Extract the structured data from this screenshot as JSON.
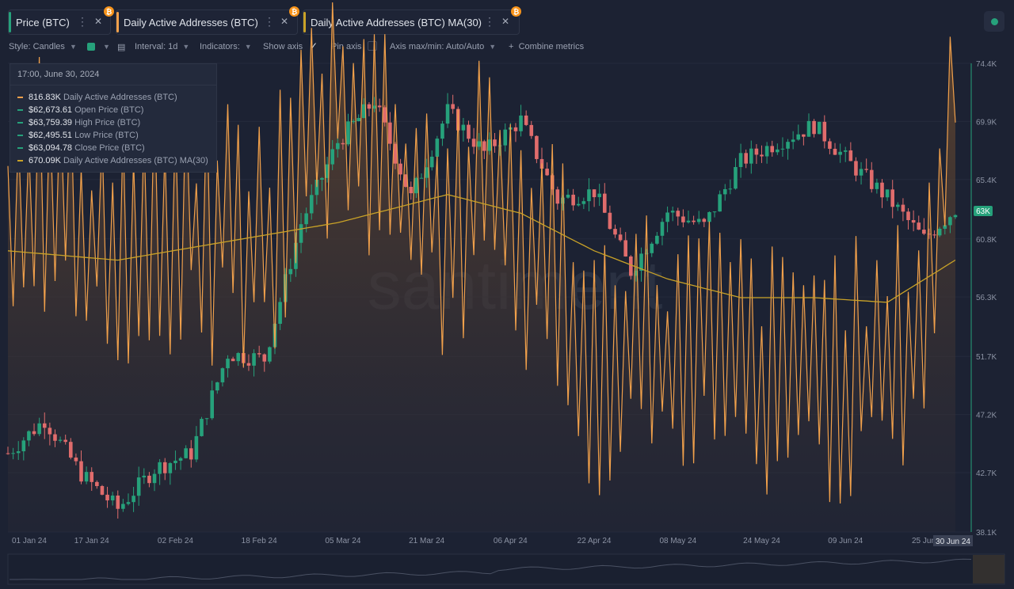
{
  "tabs": [
    {
      "label": "Price (BTC)",
      "accent": "#26a17b"
    },
    {
      "label": "Daily Active Addresses (BTC)",
      "accent": "#f0a04b"
    },
    {
      "label": "Daily Active Addresses (BTC) MA(30)",
      "accent": "#c9a227"
    }
  ],
  "toolbar": {
    "style": "Style: Candles",
    "interval": "Interval: 1d",
    "indicators": "Indicators:",
    "show_axis": "Show axis",
    "pin_axis": "Pin axis",
    "axis_maxmin": "Axis max/min: Auto/Auto",
    "combine": "Combine metrics"
  },
  "tooltip": {
    "date": "17:00, June 30, 2024",
    "rows": [
      {
        "value": "816.83K",
        "label": "Daily Active Addresses (BTC)",
        "color": "#f0a04b"
      },
      {
        "value": "$62,673.61",
        "label": "Open Price (BTC)",
        "color": "#26a17b"
      },
      {
        "value": "$63,759.39",
        "label": "High Price (BTC)",
        "color": "#26a17b"
      },
      {
        "value": "$62,495.51",
        "label": "Low Price (BTC)",
        "color": "#26a17b"
      },
      {
        "value": "$63,094.78",
        "label": "Close Price (BTC)",
        "color": "#26a17b"
      },
      {
        "value": "670.09K",
        "label": "Daily Active Addresses (BTC) MA(30)",
        "color": "#c9a227"
      }
    ]
  },
  "watermark": "santiment",
  "chart_data": {
    "type": "candlestick+line",
    "x_ticks": [
      "01 Jan 24",
      "17 Jan 24",
      "02 Feb 24",
      "18 Feb 24",
      "05 Mar 24",
      "21 Mar 24",
      "06 Apr 24",
      "22 Apr 24",
      "08 May 24",
      "24 May 24",
      "09 Jun 24",
      "25 Jun 24"
    ],
    "x_highlight": "30 Jun 24",
    "y_ticks_price": [
      "74.4K",
      "69.9K",
      "65.4K",
      "60.8K",
      "56.3K",
      "51.7K",
      "47.2K",
      "42.7K",
      "38.1K"
    ],
    "y_ticks_values": [
      74400,
      69900,
      65400,
      60800,
      56300,
      51700,
      47200,
      42700,
      38100
    ],
    "y_range_price": [
      38100,
      74400
    ],
    "current_price_label": "63K",
    "current_price": 63095,
    "price_weekly_closes": [
      {
        "date": "2024-01-01",
        "close": 44200
      },
      {
        "date": "2024-01-08",
        "close": 46800
      },
      {
        "date": "2024-01-15",
        "close": 42600
      },
      {
        "date": "2024-01-22",
        "close": 39900
      },
      {
        "date": "2024-01-29",
        "close": 43000
      },
      {
        "date": "2024-02-05",
        "close": 44200
      },
      {
        "date": "2024-02-12",
        "close": 51900
      },
      {
        "date": "2024-02-19",
        "close": 51500
      },
      {
        "date": "2024-02-26",
        "close": 62000
      },
      {
        "date": "2024-03-04",
        "close": 68300
      },
      {
        "date": "2024-03-11",
        "close": 71500
      },
      {
        "date": "2024-03-18",
        "close": 64000
      },
      {
        "date": "2024-03-25",
        "close": 70700
      },
      {
        "date": "2024-04-01",
        "close": 67500
      },
      {
        "date": "2024-04-08",
        "close": 70000
      },
      {
        "date": "2024-04-15",
        "close": 63800
      },
      {
        "date": "2024-04-22",
        "close": 64500
      },
      {
        "date": "2024-04-29",
        "close": 58300
      },
      {
        "date": "2024-05-06",
        "close": 62900
      },
      {
        "date": "2024-05-13",
        "close": 61800
      },
      {
        "date": "2024-05-20",
        "close": 66800
      },
      {
        "date": "2024-05-27",
        "close": 68300
      },
      {
        "date": "2024-06-03",
        "close": 69600
      },
      {
        "date": "2024-06-10",
        "close": 66600
      },
      {
        "date": "2024-06-17",
        "close": 64000
      },
      {
        "date": "2024-06-24",
        "close": 60800
      },
      {
        "date": "2024-06-30",
        "close": 63095
      }
    ],
    "daa_weekly": [
      {
        "date": "2024-01-01",
        "value": 720000
      },
      {
        "date": "2024-01-08",
        "value": 760000
      },
      {
        "date": "2024-01-15",
        "value": 700000
      },
      {
        "date": "2024-01-22",
        "value": 690000
      },
      {
        "date": "2024-01-29",
        "value": 710000
      },
      {
        "date": "2024-02-05",
        "value": 700000
      },
      {
        "date": "2024-02-12",
        "value": 710000
      },
      {
        "date": "2024-02-19",
        "value": 680000
      },
      {
        "date": "2024-02-26",
        "value": 780000
      },
      {
        "date": "2024-03-04",
        "value": 840000
      },
      {
        "date": "2024-03-11",
        "value": 810000
      },
      {
        "date": "2024-03-18",
        "value": 730000
      },
      {
        "date": "2024-03-25",
        "value": 710000
      },
      {
        "date": "2024-04-01",
        "value": 740000
      },
      {
        "date": "2024-04-08",
        "value": 700000
      },
      {
        "date": "2024-04-15",
        "value": 660000
      },
      {
        "date": "2024-04-22",
        "value": 560000
      },
      {
        "date": "2024-04-29",
        "value": 600000
      },
      {
        "date": "2024-05-06",
        "value": 560000
      },
      {
        "date": "2024-05-13",
        "value": 580000
      },
      {
        "date": "2024-05-20",
        "value": 560000
      },
      {
        "date": "2024-05-27",
        "value": 540000
      },
      {
        "date": "2024-06-03",
        "value": 560000
      },
      {
        "date": "2024-06-10",
        "value": 550000
      },
      {
        "date": "2024-06-17",
        "value": 540000
      },
      {
        "date": "2024-06-24",
        "value": 620000
      },
      {
        "date": "2024-06-30",
        "value": 816830
      }
    ],
    "daa_ma30_weekly": [
      {
        "date": "2024-01-01",
        "value": 680000
      },
      {
        "date": "2024-01-22",
        "value": 670000
      },
      {
        "date": "2024-02-12",
        "value": 690000
      },
      {
        "date": "2024-03-04",
        "value": 710000
      },
      {
        "date": "2024-03-25",
        "value": 740000
      },
      {
        "date": "2024-04-08",
        "value": 720000
      },
      {
        "date": "2024-04-22",
        "value": 680000
      },
      {
        "date": "2024-05-06",
        "value": 650000
      },
      {
        "date": "2024-05-20",
        "value": 630000
      },
      {
        "date": "2024-06-03",
        "value": 630000
      },
      {
        "date": "2024-06-17",
        "value": 625000
      },
      {
        "date": "2024-06-30",
        "value": 670090
      }
    ],
    "colors": {
      "up": "#26a17b",
      "down": "#e06c6c",
      "daa": "#f0a04b",
      "ma": "#c9a227",
      "price_axis_line": "#26a17b"
    },
    "grid": true,
    "legend": "top-left"
  }
}
